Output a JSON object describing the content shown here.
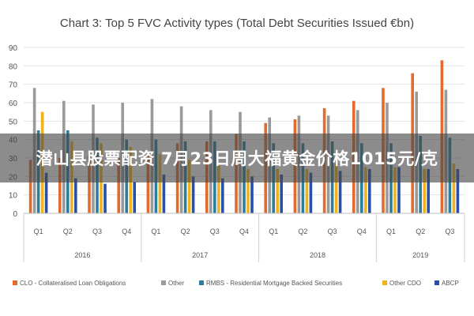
{
  "chart_data": {
    "type": "bar",
    "title": "Chart 3: Top 5 FVC Activity types (Total Debt Securities Issued €bn)",
    "xlabel": "",
    "ylabel": "",
    "ylim": [
      0,
      90
    ],
    "yticks": [
      0,
      10,
      20,
      30,
      40,
      50,
      60,
      70,
      80,
      90
    ],
    "grid": true,
    "legend_position": "bottom",
    "categories": [
      "Q1",
      "Q2",
      "Q3",
      "Q4",
      "Q1",
      "Q2",
      "Q3",
      "Q4",
      "Q1",
      "Q2",
      "Q3",
      "Q4",
      "Q1",
      "Q2",
      "Q3"
    ],
    "groups": [
      {
        "label": "2016",
        "count": 4
      },
      {
        "label": "2017",
        "count": 4
      },
      {
        "label": "2018",
        "count": 4
      },
      {
        "label": "2019",
        "count": 3
      }
    ],
    "series": [
      {
        "name": "CLO - Collateralised Loan Obligations",
        "color": "#e36c2d",
        "values": [
          29,
          30,
          31,
          30,
          31,
          38,
          39,
          43,
          49,
          51,
          57,
          61,
          68,
          76,
          83
        ]
      },
      {
        "name": "Other",
        "color": "#9a9a9a",
        "values": [
          68,
          61,
          59,
          60,
          62,
          58,
          56,
          55,
          52,
          53,
          53,
          56,
          60,
          66,
          67
        ]
      },
      {
        "name": "RMBS - Residential Mortgage Backed Securities",
        "color": "#2c7f9c",
        "values": [
          45,
          45,
          41,
          40,
          40,
          39,
          39,
          39,
          38,
          38,
          39,
          38,
          38,
          42,
          41
        ]
      },
      {
        "name": "Other CDO",
        "color": "#f3b21b",
        "values": [
          55,
          39,
          38,
          36,
          32,
          29,
          26,
          24,
          24,
          24,
          27,
          25,
          25,
          24,
          27
        ]
      },
      {
        "name": "ABCP",
        "color": "#2a4fa8",
        "values": [
          22,
          19,
          16,
          17,
          21,
          20,
          19,
          20,
          21,
          22,
          23,
          24,
          25,
          24,
          24
        ]
      }
    ]
  },
  "overlay": {
    "text": "潜山县股票配资 7月23日周大福黄金价格1015元/克"
  }
}
